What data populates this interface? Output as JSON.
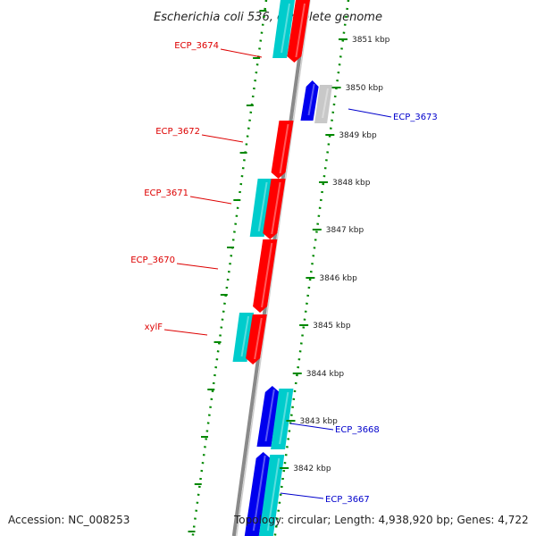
{
  "title": "Escherichia coli 536, complete genome",
  "accession": "Accession: NC_008253",
  "topology": "Topology: circular; Length: 4,938,920 bp; Genes: 4,722",
  "colors": {
    "forward_gene": "#ff0000",
    "reverse_gene": "#0000ee",
    "forward_feature": "#00cccc",
    "pseudo_gene": "#c8c8c8",
    "backbone": "#8a8a8a",
    "ticks": "#008800",
    "forward_label": "#dd0000",
    "reverse_label": "#0000cc"
  },
  "ticks": [
    "3851 kbp",
    "3850 kbp",
    "3849 kbp",
    "3848 kbp",
    "3847 kbp",
    "3846 kbp",
    "3845 kbp",
    "3844 kbp",
    "3843 kbp",
    "3842 kbp"
  ],
  "labels": [
    {
      "text": "ECP_3674",
      "strand": "forward"
    },
    {
      "text": "ECP_3673",
      "strand": "reverse"
    },
    {
      "text": "ECP_3672",
      "strand": "forward"
    },
    {
      "text": "ECP_3671",
      "strand": "forward"
    },
    {
      "text": "ECP_3670",
      "strand": "forward"
    },
    {
      "text": "xylF",
      "strand": "forward"
    },
    {
      "text": "ECP_3668",
      "strand": "reverse"
    },
    {
      "text": "ECP_3667",
      "strand": "reverse"
    }
  ]
}
